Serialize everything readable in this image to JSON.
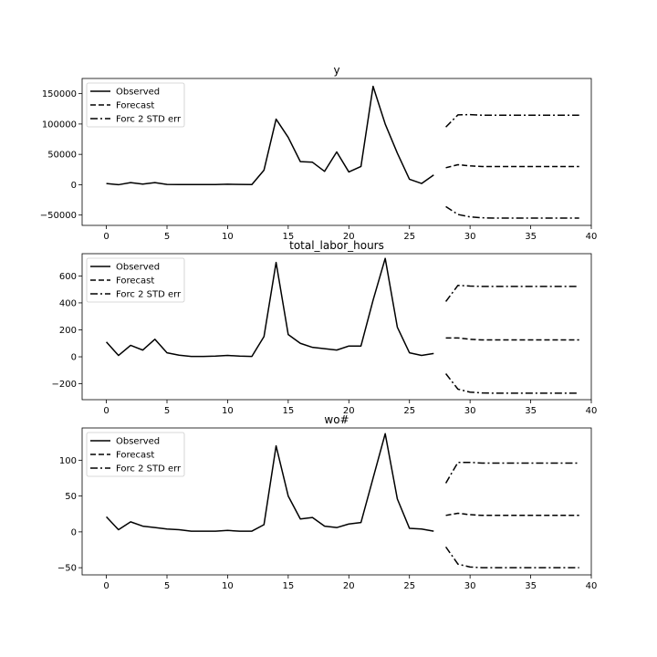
{
  "chart_data": [
    {
      "type": "line",
      "title": "y",
      "xlim": [
        -2,
        40
      ],
      "ylim": [
        -67000,
        175000
      ],
      "xticks": [
        0,
        5,
        10,
        15,
        20,
        25,
        30,
        35,
        40
      ],
      "yticks": [
        -50000,
        0,
        50000,
        100000,
        150000
      ],
      "ytick_labels": [
        "−50000",
        "0",
        "50000",
        "100000",
        "150000"
      ],
      "legend": {
        "position": "top-left",
        "entries": [
          "Observed",
          "Forecast",
          "Forc 2 STD err"
        ]
      },
      "series": [
        {
          "name": "Observed",
          "style": "solid",
          "x": [
            0,
            1,
            2,
            3,
            4,
            5,
            6,
            7,
            8,
            9,
            10,
            11,
            12,
            13,
            14,
            15,
            16,
            17,
            18,
            19,
            20,
            21,
            22,
            23,
            24,
            25,
            26,
            27
          ],
          "y": [
            2000,
            0,
            3500,
            1000,
            3500,
            500,
            300,
            200,
            200,
            200,
            800,
            400,
            200,
            24000,
            108000,
            78000,
            38000,
            37000,
            22000,
            54000,
            21000,
            30000,
            162000,
            100000,
            52000,
            9000,
            2000,
            16000
          ]
        },
        {
          "name": "Forecast",
          "style": "dashed",
          "x": [
            28,
            29,
            30,
            31,
            32,
            33,
            34,
            35,
            36,
            37,
            38,
            39
          ],
          "y": [
            28000,
            33000,
            31000,
            30000,
            30000,
            30000,
            30000,
            30000,
            30000,
            30000,
            30000,
            30000
          ]
        },
        {
          "name": "Forc 2 STD err",
          "style": "dashdot",
          "x": [
            28,
            29,
            30,
            31,
            32,
            33,
            34,
            35,
            36,
            37,
            38,
            39
          ],
          "y": [
            95000,
            115000,
            115500,
            114500,
            114500,
            114500,
            114500,
            114500,
            114500,
            114500,
            114500,
            114500
          ]
        },
        {
          "name": "Forc 2 STD err lower",
          "style": "dashdot",
          "x": [
            28,
            29,
            30,
            31,
            32,
            33,
            34,
            35,
            36,
            37,
            38,
            39
          ],
          "y": [
            -36000,
            -49000,
            -53000,
            -54500,
            -55000,
            -55000,
            -55000,
            -55000,
            -55000,
            -55000,
            -55000,
            -55000
          ]
        }
      ]
    },
    {
      "type": "line",
      "title": "total_labor_hours",
      "xlim": [
        -2,
        40
      ],
      "ylim": [
        -318,
        765
      ],
      "xticks": [
        0,
        5,
        10,
        15,
        20,
        25,
        30,
        35,
        40
      ],
      "yticks": [
        -200,
        0,
        200,
        400,
        600
      ],
      "ytick_labels": [
        "−200",
        "0",
        "200",
        "400",
        "600"
      ],
      "legend": {
        "position": "top-left",
        "entries": [
          "Observed",
          "Forecast",
          "Forc 2 STD err"
        ]
      },
      "series": [
        {
          "name": "Observed",
          "style": "solid",
          "x": [
            0,
            1,
            2,
            3,
            4,
            5,
            6,
            7,
            8,
            9,
            10,
            11,
            12,
            13,
            14,
            15,
            16,
            17,
            18,
            19,
            20,
            21,
            22,
            23,
            24,
            25,
            26,
            27
          ],
          "y": [
            110,
            10,
            85,
            50,
            130,
            30,
            12,
            3,
            3,
            5,
            10,
            5,
            3,
            150,
            700,
            165,
            100,
            70,
            60,
            50,
            80,
            80,
            420,
            730,
            220,
            30,
            10,
            25
          ]
        },
        {
          "name": "Forecast",
          "style": "dashed",
          "x": [
            28,
            29,
            30,
            31,
            32,
            33,
            34,
            35,
            36,
            37,
            38,
            39
          ],
          "y": [
            140,
            140,
            130,
            125,
            125,
            125,
            125,
            125,
            125,
            125,
            125,
            125
          ]
        },
        {
          "name": "Forc 2 STD err",
          "style": "dashdot",
          "x": [
            28,
            29,
            30,
            31,
            32,
            33,
            34,
            35,
            36,
            37,
            38,
            39
          ],
          "y": [
            410,
            530,
            525,
            522,
            522,
            522,
            522,
            522,
            522,
            522,
            522,
            522
          ]
        },
        {
          "name": "Forc 2 STD err lower",
          "style": "dashdot",
          "x": [
            28,
            29,
            30,
            31,
            32,
            33,
            34,
            35,
            36,
            37,
            38,
            39
          ],
          "y": [
            -125,
            -240,
            -262,
            -268,
            -270,
            -270,
            -270,
            -270,
            -270,
            -270,
            -270,
            -270
          ]
        }
      ]
    },
    {
      "type": "line",
      "title": "wo#",
      "xlim": [
        -2,
        40
      ],
      "ylim": [
        -60,
        145
      ],
      "xticks": [
        0,
        5,
        10,
        15,
        20,
        25,
        30,
        35,
        40
      ],
      "yticks": [
        -50,
        0,
        50,
        100
      ],
      "ytick_labels": [
        "−50",
        "0",
        "50",
        "100"
      ],
      "legend": {
        "position": "top-left",
        "entries": [
          "Observed",
          "Forecast",
          "Forc 2 STD err"
        ]
      },
      "series": [
        {
          "name": "Observed",
          "style": "solid",
          "x": [
            0,
            1,
            2,
            3,
            4,
            5,
            6,
            7,
            8,
            9,
            10,
            11,
            12,
            13,
            14,
            15,
            16,
            17,
            18,
            19,
            20,
            21,
            22,
            23,
            24,
            25,
            26,
            27
          ],
          "y": [
            21,
            3,
            14,
            8,
            6,
            4,
            3,
            1,
            1,
            1,
            2,
            1,
            1,
            10,
            120,
            50,
            18,
            20,
            8,
            6,
            11,
            13,
            75,
            137,
            46,
            5,
            4,
            1
          ]
        },
        {
          "name": "Forecast",
          "style": "dashed",
          "x": [
            28,
            29,
            30,
            31,
            32,
            33,
            34,
            35,
            36,
            37,
            38,
            39
          ],
          "y": [
            23,
            26,
            24,
            23,
            23,
            23,
            23,
            23,
            23,
            23,
            23,
            23
          ]
        },
        {
          "name": "Forc 2 STD err",
          "style": "dashdot",
          "x": [
            28,
            29,
            30,
            31,
            32,
            33,
            34,
            35,
            36,
            37,
            38,
            39
          ],
          "y": [
            68,
            97,
            97,
            96,
            96,
            96,
            96,
            96,
            96,
            96,
            96,
            96
          ]
        },
        {
          "name": "Forc 2 STD err lower",
          "style": "dashdot",
          "x": [
            28,
            29,
            30,
            31,
            32,
            33,
            34,
            35,
            36,
            37,
            38,
            39
          ],
          "y": [
            -21,
            -45,
            -49,
            -50,
            -50,
            -50,
            -50,
            -50,
            -50,
            -50,
            -50,
            -50
          ]
        }
      ]
    }
  ]
}
